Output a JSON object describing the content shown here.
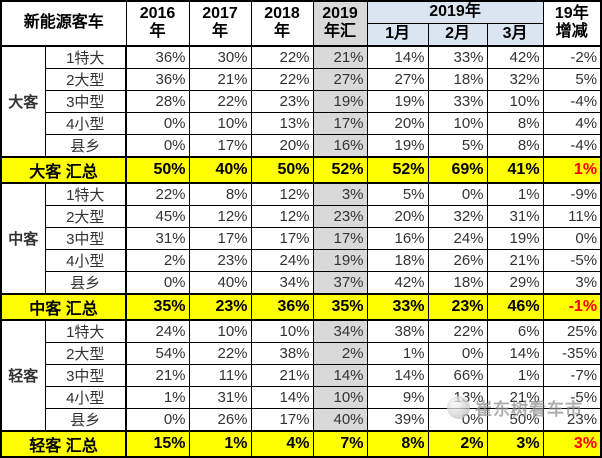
{
  "chart_data": {
    "type": "table",
    "corner_header": "新能源客车",
    "year_headers": [
      {
        "line1": "2016",
        "line2": "年"
      },
      {
        "line1": "2017",
        "line2": "年"
      },
      {
        "line1": "2018",
        "line2": "年"
      },
      {
        "line1": "2019",
        "line2": "年汇"
      }
    ],
    "month_group_header": "2019年",
    "month_headers": [
      "1月",
      "2月",
      "3月"
    ],
    "change_header": {
      "line1": "19年",
      "line2": "增减"
    },
    "groups": [
      {
        "name": "大客",
        "rows": [
          {
            "label": "1特大",
            "values": [
              "36%",
              "30%",
              "22%",
              "21%",
              "14%",
              "33%",
              "42%",
              "-2%"
            ]
          },
          {
            "label": "2大型",
            "values": [
              "36%",
              "21%",
              "22%",
              "27%",
              "27%",
              "18%",
              "32%",
              "5%"
            ]
          },
          {
            "label": "3中型",
            "values": [
              "28%",
              "22%",
              "23%",
              "19%",
              "19%",
              "33%",
              "10%",
              "-4%"
            ]
          },
          {
            "label": "4小型",
            "values": [
              "0%",
              "10%",
              "13%",
              "17%",
              "20%",
              "10%",
              "8%",
              "4%"
            ]
          },
          {
            "label": "县乡",
            "values": [
              "0%",
              "17%",
              "20%",
              "16%",
              "19%",
              "5%",
              "8%",
              "-4%"
            ]
          }
        ],
        "summary": {
          "label": "大客 汇总",
          "values": [
            "50%",
            "40%",
            "50%",
            "52%",
            "52%",
            "69%",
            "41%",
            "1%"
          ]
        }
      },
      {
        "name": "中客",
        "rows": [
          {
            "label": "1特大",
            "values": [
              "22%",
              "8%",
              "12%",
              "3%",
              "5%",
              "0%",
              "1%",
              "-9%"
            ]
          },
          {
            "label": "2大型",
            "values": [
              "45%",
              "12%",
              "12%",
              "23%",
              "20%",
              "32%",
              "31%",
              "11%"
            ]
          },
          {
            "label": "3中型",
            "values": [
              "31%",
              "17%",
              "17%",
              "17%",
              "16%",
              "24%",
              "19%",
              "0%"
            ]
          },
          {
            "label": "4小型",
            "values": [
              "2%",
              "23%",
              "24%",
              "19%",
              "18%",
              "26%",
              "21%",
              "-5%"
            ]
          },
          {
            "label": "县乡",
            "values": [
              "0%",
              "40%",
              "34%",
              "37%",
              "42%",
              "18%",
              "29%",
              "3%"
            ]
          }
        ],
        "summary": {
          "label": "中客 汇总",
          "values": [
            "35%",
            "23%",
            "36%",
            "35%",
            "33%",
            "23%",
            "46%",
            "-1%"
          ]
        }
      },
      {
        "name": "轻客",
        "rows": [
          {
            "label": "1特大",
            "values": [
              "24%",
              "10%",
              "10%",
              "34%",
              "38%",
              "22%",
              "6%",
              "25%"
            ]
          },
          {
            "label": "2大型",
            "values": [
              "54%",
              "22%",
              "38%",
              "2%",
              "1%",
              "0%",
              "14%",
              "-35%"
            ]
          },
          {
            "label": "3中型",
            "values": [
              "21%",
              "11%",
              "21%",
              "14%",
              "14%",
              "66%",
              "1%",
              "-7%"
            ]
          },
          {
            "label": "4小型",
            "values": [
              "1%",
              "31%",
              "14%",
              "10%",
              "9%",
              "13%",
              "21%",
              "-5%"
            ]
          },
          {
            "label": "县乡",
            "values": [
              "0%",
              "26%",
              "17%",
              "40%",
              "39%",
              "0%",
              "50%",
              "23%"
            ]
          }
        ],
        "summary": {
          "label": "轻客 汇总",
          "values": [
            "15%",
            "1%",
            "4%",
            "7%",
            "8%",
            "2%",
            "3%",
            "3%"
          ]
        }
      }
    ]
  },
  "watermark": {
    "text": "崔东树看车市"
  },
  "colors": {
    "summary_row_bg": "#ffff00",
    "huizong_column_bg": "#d9d9d9",
    "month_header_bg": "#dbe5f1",
    "change_text": "#ff0000",
    "border": "#000000"
  }
}
